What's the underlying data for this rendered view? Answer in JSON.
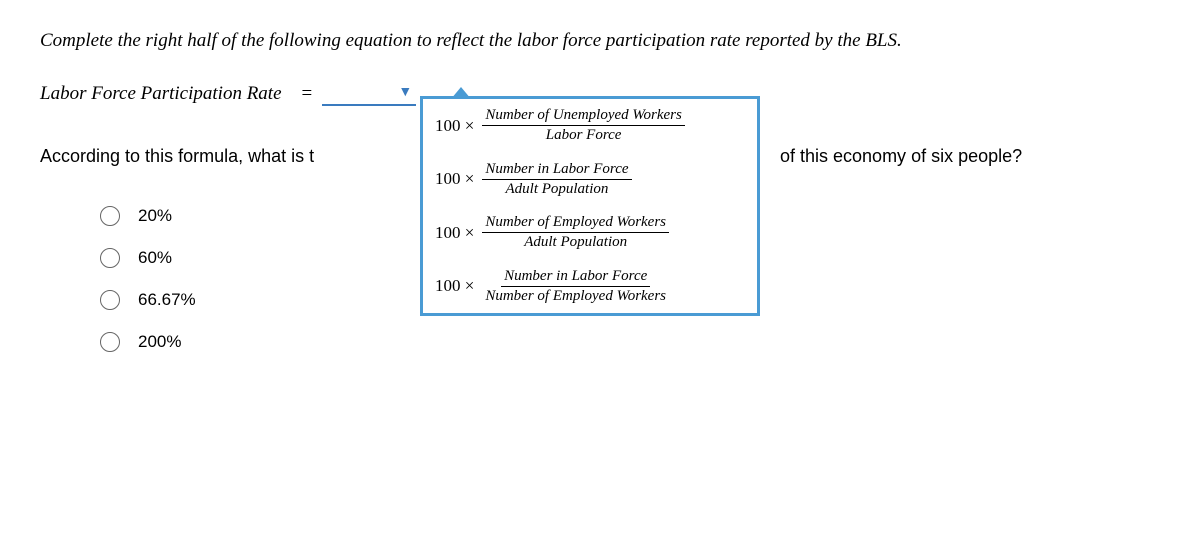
{
  "instruction": "Complete the right half of the following equation to reflect the labor force participation rate reported by the BLS.",
  "equation": {
    "lhs": "Labor Force Participation Rate",
    "equals": "="
  },
  "question": {
    "left_fragment": "According to this formula, what is t",
    "right_fragment": "of this economy of six people?"
  },
  "dropdown_options": [
    {
      "multiplier": "100 ×",
      "numerator": "Number of Unemployed Workers",
      "denominator": "Labor Force"
    },
    {
      "multiplier": "100 ×",
      "numerator": "Number in Labor Force",
      "denominator": "Adult Population"
    },
    {
      "multiplier": "100 ×",
      "numerator": "Number of Employed Workers",
      "denominator": "Adult Population"
    },
    {
      "multiplier": "100 ×",
      "numerator": "Number in Labor Force",
      "denominator": "Number of Employed Workers"
    }
  ],
  "answer_options": [
    {
      "label": "20%"
    },
    {
      "label": "60%"
    },
    {
      "label": "66.67%"
    },
    {
      "label": "200%"
    }
  ],
  "colors": {
    "dropdown_border": "#4a9bd4",
    "field_underline": "#3a7bbf",
    "text": "#000000",
    "radio_border": "#666666",
    "background": "#ffffff"
  }
}
